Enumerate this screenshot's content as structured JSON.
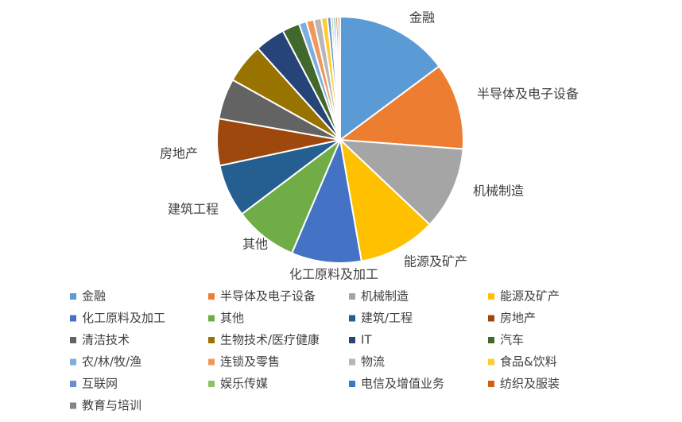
{
  "chart_data": {
    "type": "pie",
    "title": "",
    "legend_position": "bottom",
    "slices": [
      {
        "label": "金融",
        "value": 15.0,
        "color": "#5B9BD5",
        "show_label": true
      },
      {
        "label": "半导体及电子设备",
        "value": 11.5,
        "color": "#ED7D31",
        "show_label": true
      },
      {
        "label": "机械制造",
        "value": 11.0,
        "color": "#A5A5A5",
        "show_label": true
      },
      {
        "label": "能源及矿产",
        "value": 10.3,
        "color": "#FFC000",
        "show_label": true
      },
      {
        "label": "化工原料及加工",
        "value": 9.3,
        "color": "#4472C4",
        "show_label": true
      },
      {
        "label": "其他",
        "value": 8.4,
        "color": "#70AD47",
        "show_label": true
      },
      {
        "label": "建筑/工程",
        "value": 7.0,
        "color": "#255E91",
        "show_label": true,
        "slice_label": "建筑工程"
      },
      {
        "label": "房地产",
        "value": 6.2,
        "color": "#9E480E",
        "show_label": true
      },
      {
        "label": "清洁技术",
        "value": 5.4,
        "color": "#636363",
        "show_label": false
      },
      {
        "label": "生物技术/医疗健康",
        "value": 5.3,
        "color": "#997300",
        "show_label": false
      },
      {
        "label": "IT",
        "value": 4.0,
        "color": "#264478",
        "show_label": false
      },
      {
        "label": "汽车",
        "value": 2.3,
        "color": "#43682B",
        "show_label": false
      },
      {
        "label": "农/林/牧/渔",
        "value": 1.0,
        "color": "#7CAFDD",
        "show_label": false
      },
      {
        "label": "连锁及零售",
        "value": 1.0,
        "color": "#F1975A",
        "show_label": false
      },
      {
        "label": "物流",
        "value": 1.0,
        "color": "#B7B7B7",
        "show_label": false
      },
      {
        "label": "食品&饮料",
        "value": 0.8,
        "color": "#FFCD33",
        "show_label": false
      },
      {
        "label": "互联网",
        "value": 0.5,
        "color": "#698ED0",
        "show_label": false
      },
      {
        "label": "娱乐传媒",
        "value": 0.3,
        "color": "#8CC168",
        "show_label": false
      },
      {
        "label": "电信及增值业务",
        "value": 0.3,
        "color": "#327DC2",
        "show_label": false
      },
      {
        "label": "纺织及服装",
        "value": 0.3,
        "color": "#D26012",
        "show_label": false
      },
      {
        "label": "教育与培训",
        "value": 0.3,
        "color": "#848484",
        "show_label": false
      }
    ]
  }
}
